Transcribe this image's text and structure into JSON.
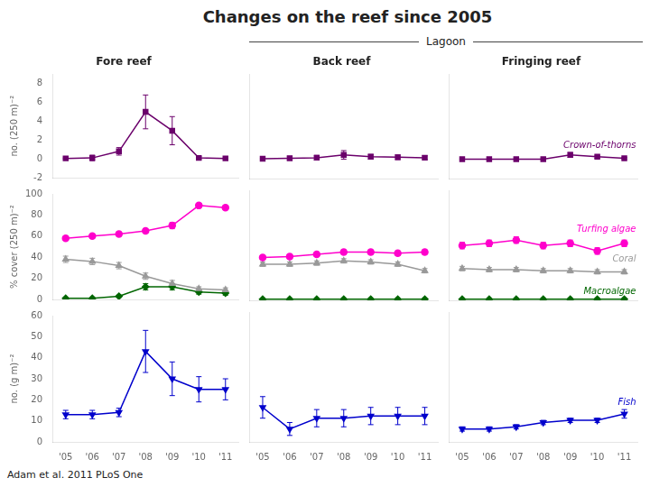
{
  "title": "Changes on the reef since 2005",
  "subtitle": "Lagoon",
  "annotations": [
    "Adam et al. 2011  PLoS One"
  ],
  "chart_data": [
    {
      "type": "line",
      "title": "Fore reef",
      "ylabel": "no. (250 m)⁻²",
      "categories": [
        "'05",
        "'06",
        "'07",
        "'08",
        "'09",
        "'10",
        "'11"
      ],
      "series": [
        {
          "color": "#6b006b",
          "marker": "square",
          "values": [
            0.05,
            0.1,
            0.8,
            5.0,
            3.0,
            0.1,
            0.05
          ],
          "errors": [
            0.05,
            0.3,
            0.4,
            1.8,
            1.5,
            0.15,
            0.05
          ]
        }
      ],
      "ylim": [
        -2,
        9
      ],
      "yticks": [
        -2,
        0,
        2,
        4,
        6,
        8
      ],
      "grid": false,
      "tick_labels": "y"
    },
    {
      "type": "line",
      "title": "Back reef",
      "categories": [
        "'05",
        "'06",
        "'07",
        "'08",
        "'09",
        "'10",
        "'11"
      ],
      "series": [
        {
          "color": "#6b006b",
          "marker": "square",
          "values": [
            0.1,
            0.15,
            0.2,
            0.5,
            0.3,
            0.25,
            0.2
          ],
          "errors": [
            0.05,
            0.2,
            0.25,
            0.45,
            0.25,
            0.25,
            0.2
          ]
        }
      ],
      "ylim": [
        -2,
        9
      ],
      "yticks": [
        -2,
        0,
        2,
        4,
        6,
        8
      ],
      "grid": false,
      "tick_labels": false
    },
    {
      "type": "line",
      "title": "Fringing reef",
      "categories": [
        "'05",
        "'06",
        "'07",
        "'08",
        "'09",
        "'10",
        "'11"
      ],
      "series": [
        {
          "name": "Crown-of-thorns",
          "color": "#6b006b",
          "marker": "square",
          "values": [
            0.05,
            0.05,
            0.05,
            0.05,
            0.5,
            0.3,
            0.15
          ],
          "errors": [
            0.03,
            0.03,
            0.03,
            0.03,
            0.25,
            0.15,
            0.08
          ]
        }
      ],
      "ylim": [
        -2,
        9
      ],
      "yticks": [
        -2,
        0,
        2,
        4,
        6,
        8
      ],
      "grid": false,
      "tick_labels": false
    },
    {
      "type": "line",
      "ylabel": "% cover (250 m)⁻²",
      "categories": [
        "'05",
        "'06",
        "'07",
        "'08",
        "'09",
        "'10",
        "'11"
      ],
      "series": [
        {
          "color": "#ff00cc",
          "marker": "circle",
          "values": [
            58,
            60,
            62,
            65,
            70,
            89,
            87
          ],
          "errors": [
            2,
            2,
            2,
            2,
            3,
            2,
            2
          ]
        },
        {
          "color": "#999999",
          "marker": "triangle-up",
          "values": [
            38,
            36,
            32,
            22,
            15,
            10,
            9
          ],
          "errors": [
            3,
            3,
            3,
            3,
            3,
            2,
            2
          ]
        },
        {
          "color": "#006600",
          "marker": "diamond",
          "values": [
            1,
            1,
            3,
            12,
            12,
            7,
            6
          ],
          "errors": [
            0.5,
            0.5,
            1,
            3,
            3,
            2,
            2
          ]
        }
      ],
      "ylim": [
        0,
        100
      ],
      "yticks": [
        0,
        20,
        40,
        60,
        80,
        100
      ],
      "grid": false,
      "tick_labels": "y"
    },
    {
      "type": "line",
      "categories": [
        "'05",
        "'06",
        "'07",
        "'08",
        "'09",
        "'10",
        "'11"
      ],
      "series": [
        {
          "color": "#ff00cc",
          "marker": "circle",
          "values": [
            39,
            40,
            42,
            44,
            44,
            43,
            44
          ],
          "errors": [
            2,
            2,
            2,
            2,
            2,
            2,
            2
          ]
        },
        {
          "color": "#999999",
          "marker": "triangle-up",
          "values": [
            33,
            33,
            34,
            36,
            35,
            33,
            27
          ],
          "errors": [
            2,
            2,
            2,
            2,
            2,
            2,
            2
          ]
        },
        {
          "color": "#006600",
          "marker": "diamond",
          "values": [
            1,
            1,
            1,
            1,
            1,
            1,
            1
          ],
          "errors": [
            0.3,
            0.3,
            0.3,
            0.3,
            0.3,
            0.3,
            0.3
          ]
        }
      ],
      "ylim": [
        0,
        100
      ],
      "yticks": [
        0,
        20,
        40,
        60,
        80,
        100
      ],
      "grid": false,
      "tick_labels": false
    },
    {
      "type": "line",
      "categories": [
        "'05",
        "'06",
        "'07",
        "'08",
        "'09",
        "'10",
        "'11"
      ],
      "series": [
        {
          "name": "Turfing algae",
          "color": "#ff00cc",
          "marker": "circle",
          "values": [
            50,
            52,
            55,
            50,
            52,
            45,
            52
          ],
          "errors": [
            3,
            3,
            3,
            3,
            3,
            3,
            3
          ]
        },
        {
          "name": "Coral",
          "color": "#999999",
          "marker": "triangle-up",
          "values": [
            29,
            28,
            28,
            27,
            27,
            26,
            26
          ],
          "errors": [
            2,
            2,
            2,
            2,
            2,
            2,
            2
          ]
        },
        {
          "name": "Macroalgae",
          "color": "#006600",
          "marker": "diamond",
          "values": [
            1,
            1,
            1,
            1,
            1,
            1,
            1
          ],
          "errors": [
            0.3,
            0.3,
            0.3,
            0.3,
            0.3,
            0.3,
            0.3
          ]
        }
      ],
      "ylim": [
        0,
        100
      ],
      "yticks": [
        0,
        20,
        40,
        60,
        80,
        100
      ],
      "grid": false,
      "tick_labels": false
    },
    {
      "type": "line",
      "ylabel": "no. (g m)⁻²",
      "categories": [
        "'05",
        "'06",
        "'07",
        "'08",
        "'09",
        "'10",
        "'11"
      ],
      "series": [
        {
          "color": "#0000cc",
          "marker": "triangle-down",
          "values": [
            13,
            13,
            14,
            43,
            30,
            25,
            25
          ],
          "errors": [
            2,
            2,
            2,
            10,
            8,
            6,
            5
          ]
        }
      ],
      "ylim": [
        0,
        60
      ],
      "yticks": [
        0,
        10,
        20,
        30,
        40,
        50,
        60
      ],
      "grid": false,
      "tick_labels": true
    },
    {
      "type": "line",
      "categories": [
        "'05",
        "'06",
        "'07",
        "'08",
        "'09",
        "'10",
        "'11"
      ],
      "series": [
        {
          "color": "#0000cc",
          "marker": "triangle-down",
          "values": [
            16,
            6,
            11,
            11,
            12,
            12,
            12
          ],
          "errors": [
            5,
            3,
            4,
            4,
            4,
            4,
            4
          ]
        }
      ],
      "ylim": [
        0,
        60
      ],
      "yticks": [
        0,
        10,
        20,
        30,
        40,
        50,
        60
      ],
      "grid": false,
      "tick_labels": "x"
    },
    {
      "type": "line",
      "categories": [
        "'05",
        "'06",
        "'07",
        "'08",
        "'09",
        "'10",
        "'11"
      ],
      "series": [
        {
          "name": "Fish",
          "color": "#0000cc",
          "marker": "triangle-down",
          "values": [
            6,
            6,
            7,
            9,
            10,
            10,
            13
          ],
          "errors": [
            1,
            1,
            1,
            1,
            1,
            1,
            2
          ]
        }
      ],
      "ylim": [
        0,
        60
      ],
      "yticks": [
        0,
        10,
        20,
        30,
        40,
        50,
        60
      ],
      "grid": false,
      "tick_labels": "x"
    }
  ]
}
